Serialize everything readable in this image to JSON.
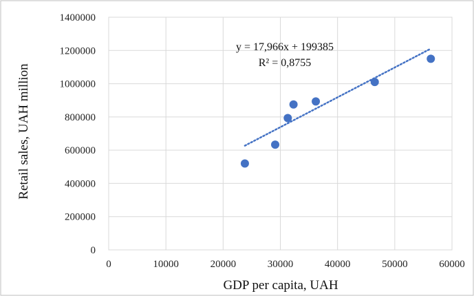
{
  "chart_data": {
    "type": "scatter",
    "title": "",
    "xlabel": "GDP per capita, UAH",
    "ylabel": "Retail sales, UAH million",
    "xlim": [
      0,
      60000
    ],
    "ylim": [
      0,
      1400000
    ],
    "x_ticks": [
      0,
      10000,
      20000,
      30000,
      40000,
      50000,
      60000
    ],
    "y_ticks": [
      0,
      200000,
      400000,
      600000,
      800000,
      1000000,
      1200000,
      1400000
    ],
    "x_tick_labels": [
      "0",
      "10000",
      "20000",
      "30000",
      "40000",
      "50000",
      "60000"
    ],
    "y_tick_labels": [
      "0",
      "200000",
      "400000",
      "600000",
      "800000",
      "1000000",
      "1200000",
      "1400000"
    ],
    "grid": true,
    "legend": "none",
    "series": [
      {
        "points": [
          {
            "x": 23800,
            "y": 520000
          },
          {
            "x": 29100,
            "y": 633000
          },
          {
            "x": 31300,
            "y": 793000
          },
          {
            "x": 32300,
            "y": 875000
          },
          {
            "x": 36200,
            "y": 893000
          },
          {
            "x": 46500,
            "y": 1010000
          },
          {
            "x": 56300,
            "y": 1150000
          }
        ],
        "color": "#4472C4"
      }
    ],
    "trendline": {
      "type": "linear",
      "slope": 17.966,
      "intercept": 199385,
      "x_range": [
        23800,
        56300
      ],
      "style": "dotted",
      "color": "#4472C4"
    },
    "annotations": {
      "equation": "y = 17,966x + 199385",
      "r_squared": "R² = 0,8755"
    }
  }
}
